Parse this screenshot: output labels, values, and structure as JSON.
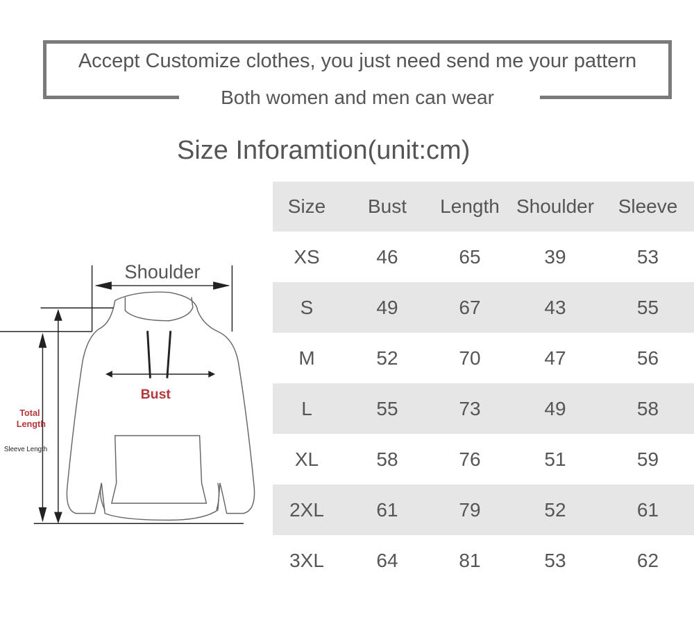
{
  "banner": {
    "line1": "Accept Customize clothes, you just need send me your pattern",
    "line2": "Both women and men can wear"
  },
  "title": "Size Inforamtion(unit:cm)",
  "table": {
    "headers": [
      "Size",
      "Bust",
      "Length",
      "Shoulder",
      "Sleeve"
    ],
    "rows": [
      [
        "XS",
        "46",
        "65",
        "39",
        "53"
      ],
      [
        "S",
        "49",
        "67",
        "43",
        "55"
      ],
      [
        "M",
        "52",
        "70",
        "47",
        "56"
      ],
      [
        "L",
        "55",
        "73",
        "49",
        "58"
      ],
      [
        "XL",
        "58",
        "76",
        "51",
        "59"
      ],
      [
        "2XL",
        "61",
        "79",
        "52",
        "61"
      ],
      [
        "3XL",
        "64",
        "81",
        "53",
        "62"
      ]
    ]
  },
  "diagram": {
    "shoulder": "Shoulder",
    "bust": "Bust",
    "total_length_1": "Total",
    "total_length_2": "Length",
    "sleeve_length": "Sleeve Length",
    "accent": "#b5363a"
  }
}
